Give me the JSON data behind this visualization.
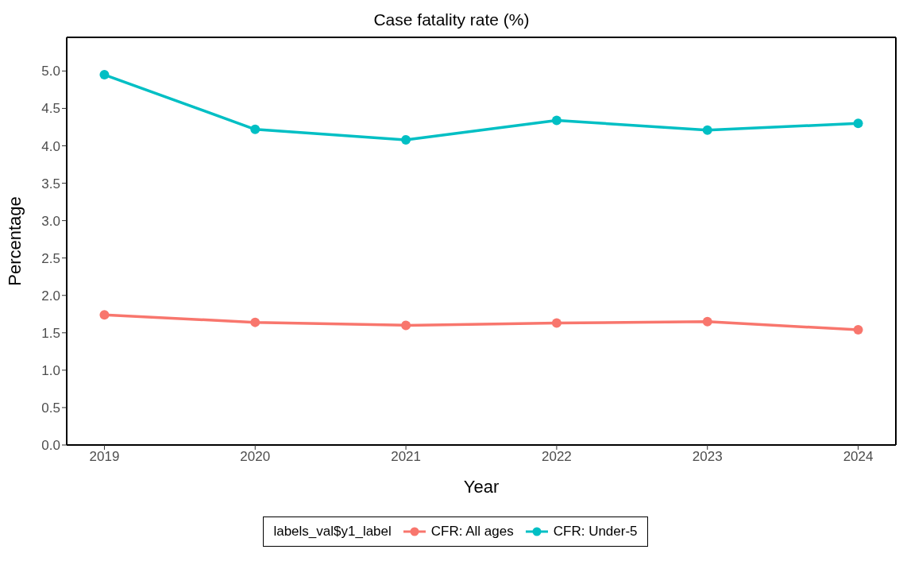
{
  "chart_data": {
    "type": "line",
    "title": "Case fatality rate (%)",
    "xlabel": "Year",
    "ylabel": "Percentage",
    "legend_title": "labels_val$y1_label",
    "x": [
      2019,
      2020,
      2021,
      2022,
      2023,
      2024
    ],
    "series": [
      {
        "name": "CFR: All ages",
        "color": "#f8766d",
        "values": [
          1.74,
          1.64,
          1.6,
          1.63,
          1.65,
          1.54
        ]
      },
      {
        "name": "CFR: Under-5",
        "color": "#00bfc4",
        "values": [
          4.95,
          4.22,
          4.08,
          4.34,
          4.21,
          4.3
        ]
      }
    ],
    "xlim": [
      2018.75,
      2024.25
    ],
    "xticks": [
      2019,
      2020,
      2021,
      2022,
      2023,
      2024
    ],
    "ylim": [
      0,
      5.45
    ],
    "yticks": [
      {
        "value": 0,
        "label": "0.0"
      },
      {
        "value": 0.5,
        "label": "0.5"
      },
      {
        "value": 1,
        "label": "1.0"
      },
      {
        "value": 1.5,
        "label": "1.5"
      },
      {
        "value": 2,
        "label": "2.0"
      },
      {
        "value": 2.5,
        "label": "2.5"
      },
      {
        "value": 3,
        "label": "3.0"
      },
      {
        "value": 3.5,
        "label": "3.5"
      },
      {
        "value": 4,
        "label": "4.0"
      },
      {
        "value": 4.5,
        "label": "4.5"
      },
      {
        "value": 5,
        "label": "5.0"
      }
    ],
    "grid": false,
    "legend": "bottom",
    "marker": "circle",
    "line_style": "solid"
  }
}
